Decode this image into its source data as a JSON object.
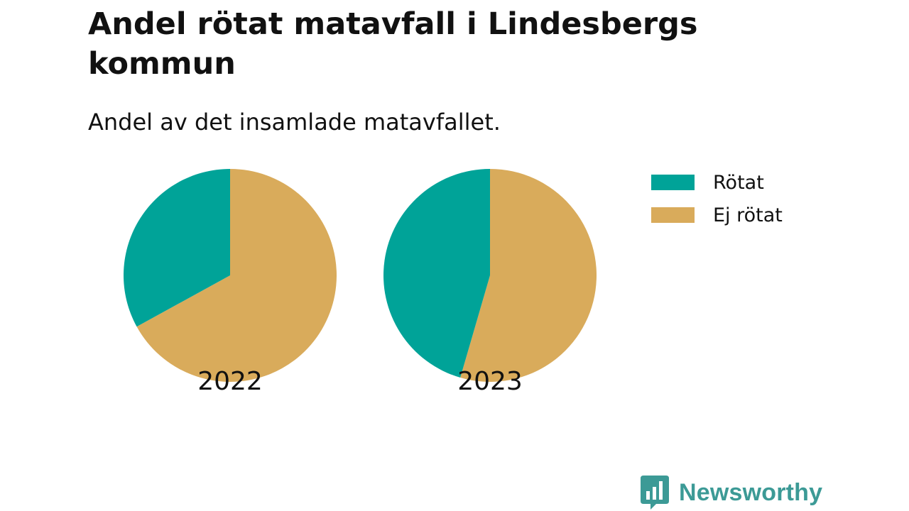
{
  "title": "Andel rötat matavfall i Lindesbergs kommun",
  "subtitle": "Andel av det insamlade matavfallet.",
  "colors": {
    "rotat": "#00a398",
    "ej_rotat": "#d9ab5b",
    "brand": "#3c9a96"
  },
  "legend": [
    {
      "label": "Rötat",
      "color": "#00a398"
    },
    {
      "label": "Ej rötat",
      "color": "#d9ab5b"
    }
  ],
  "brand": {
    "name": "Newsworthy",
    "icon": "bar-chart-speech-bubble-icon"
  },
  "chart_data": [
    {
      "type": "pie",
      "label": "2022",
      "slices": [
        {
          "name": "Rötat",
          "value": 33,
          "color": "#00a398"
        },
        {
          "name": "Ej rötat",
          "value": 67,
          "color": "#d9ab5b"
        }
      ]
    },
    {
      "type": "pie",
      "label": "2023",
      "slices": [
        {
          "name": "Rötat",
          "value": 45.5,
          "color": "#00a398"
        },
        {
          "name": "Ej rötat",
          "value": 54.5,
          "color": "#d9ab5b"
        }
      ]
    }
  ]
}
